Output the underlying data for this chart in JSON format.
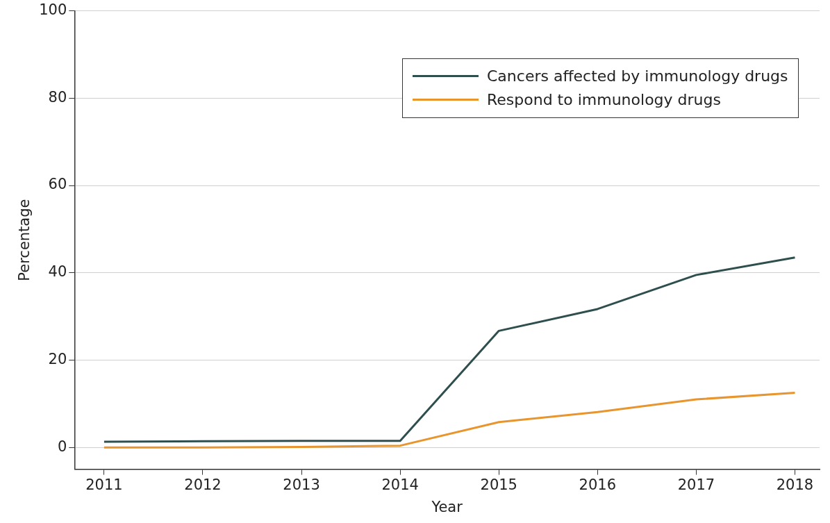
{
  "chart_data": {
    "type": "line",
    "xlabel": "Year",
    "ylabel": "Percentage",
    "x": [
      2011,
      2012,
      2013,
      2014,
      2015,
      2016,
      2017,
      2018
    ],
    "xlim": [
      2010.7,
      2018.25
    ],
    "xticks": [
      2011,
      2012,
      2013,
      2014,
      2015,
      2016,
      2017,
      2018
    ],
    "ylim": [
      -5,
      100
    ],
    "yticks": [
      0,
      20,
      40,
      60,
      80,
      100
    ],
    "grid": "y",
    "legend": "top right",
    "marker": "none",
    "line_style": "solid",
    "series": [
      {
        "name": "Cancers affected by immunology drugs",
        "color": "#2f4f4f",
        "values": [
          1.3,
          1.4,
          1.5,
          1.5,
          26.7,
          31.7,
          39.5,
          43.5
        ]
      },
      {
        "name": "Respond to immunology drugs",
        "color": "#e8952e",
        "values": [
          0,
          0,
          0.1,
          0.4,
          5.8,
          8.1,
          11,
          12.5
        ]
      }
    ]
  }
}
